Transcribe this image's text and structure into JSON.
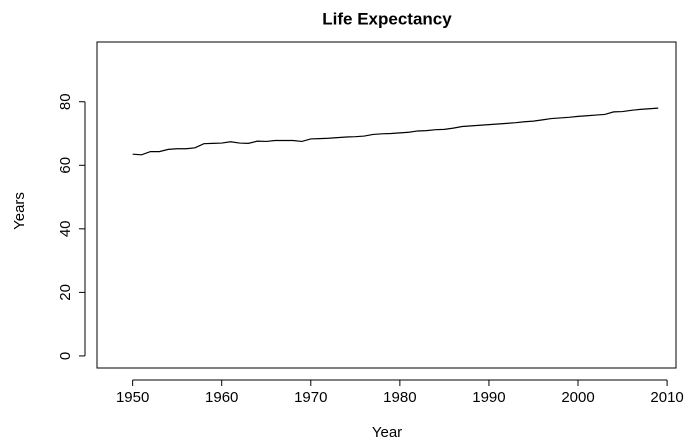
{
  "chart_data": {
    "type": "line",
    "title": "Life Expectancy",
    "x_label": "Year",
    "y_label": "Years",
    "x": [
      1950,
      1951,
      1952,
      1953,
      1954,
      1955,
      1956,
      1957,
      1958,
      1959,
      1960,
      1961,
      1962,
      1963,
      1964,
      1965,
      1966,
      1967,
      1968,
      1969,
      1970,
      1971,
      1972,
      1973,
      1974,
      1975,
      1976,
      1977,
      1978,
      1979,
      1980,
      1981,
      1982,
      1983,
      1984,
      1985,
      1986,
      1987,
      1988,
      1989,
      1990,
      1991,
      1992,
      1993,
      1994,
      1995,
      1996,
      1997,
      1998,
      1999,
      2000,
      2001,
      2002,
      2003,
      2004,
      2005,
      2006,
      2007,
      2008,
      2009
    ],
    "values": [
      63.5,
      63.3,
      64.3,
      64.3,
      65.0,
      65.2,
      65.2,
      65.5,
      66.8,
      66.9,
      67.0,
      67.4,
      67.0,
      66.9,
      67.6,
      67.5,
      67.8,
      67.8,
      67.8,
      67.5,
      68.3,
      68.4,
      68.5,
      68.7,
      68.9,
      69.0,
      69.2,
      69.7,
      69.9,
      70.0,
      70.2,
      70.4,
      70.8,
      70.9,
      71.2,
      71.3,
      71.7,
      72.2,
      72.4,
      72.6,
      72.8,
      73.0,
      73.2,
      73.4,
      73.7,
      73.9,
      74.3,
      74.7,
      74.9,
      75.1,
      75.4,
      75.6,
      75.8,
      76.0,
      76.8,
      76.9,
      77.3,
      77.6,
      77.8,
      78.0
    ],
    "color": "#000000",
    "xlim": [
      1946,
      2011
    ],
    "xticks": [
      1950,
      1960,
      1970,
      1980,
      1990,
      2000,
      2010
    ],
    "ylim": [
      -3.8,
      98.8
    ],
    "yticks": [
      0,
      20,
      40,
      60,
      80
    ]
  }
}
